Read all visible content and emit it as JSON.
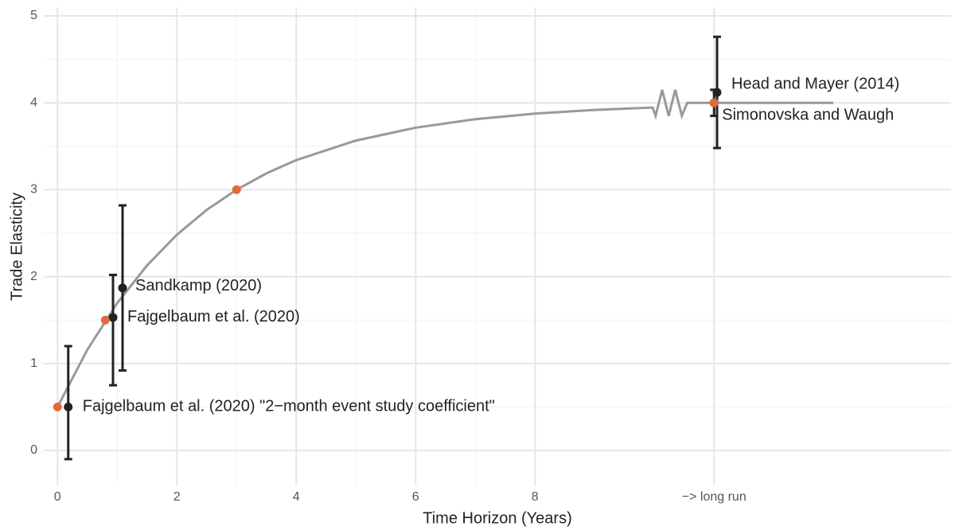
{
  "chart_data": {
    "type": "line",
    "x_label": "Time Horizon (Years)",
    "y_label": "Trade Elasticity",
    "xlim": [
      -0.23,
      14.97
    ],
    "ylim": [
      -0.4,
      5.1
    ],
    "xticks": [
      0,
      2,
      4,
      6,
      8,
      {
        "value": 11,
        "label": "−> long run"
      }
    ],
    "yticks": [
      0,
      1,
      2,
      3,
      4,
      5
    ],
    "grid": true,
    "curve": {
      "color": "#999999",
      "x": [
        0,
        0.5,
        1,
        1.5,
        2,
        2.5,
        3,
        3.5,
        4,
        5,
        6,
        7,
        8,
        9,
        9.97,
        10.02,
        10.13,
        10.24,
        10.35,
        10.46,
        10.55,
        13
      ],
      "values": [
        0.5,
        1.159,
        1.695,
        2.129,
        2.482,
        2.768,
        3.0,
        3.188,
        3.341,
        3.566,
        3.714,
        3.812,
        3.876,
        3.918,
        3.946,
        3.85,
        4.15,
        3.85,
        4.15,
        3.85,
        4.0,
        4.0
      ]
    },
    "model_points": {
      "color": "#e06c3c",
      "x": [
        0,
        0.8,
        3,
        11
      ],
      "values": [
        0.5,
        1.5,
        3.0,
        4.0
      ]
    },
    "estimates": {
      "color": "#222222",
      "labels": [
        "Fajgelbaum et al. (2020) \"2−month event study coefficient\"",
        "Fajgelbaum et al. (2020)",
        "Sandkamp (2020)",
        "Head and Mayer (2014)",
        "Simonovska and Waugh"
      ],
      "x": [
        0.18,
        0.93,
        1.09,
        11.05,
        11.0
      ],
      "values": [
        0.5,
        1.53,
        1.87,
        4.12,
        4.0
      ],
      "lower": [
        -0.1,
        0.75,
        0.92,
        3.48,
        3.85
      ],
      "upper": [
        1.2,
        2.02,
        2.82,
        4.76,
        4.15
      ]
    }
  }
}
